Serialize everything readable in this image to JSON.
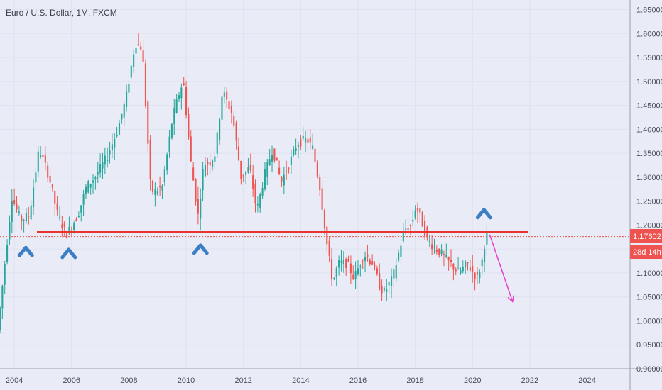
{
  "header": {
    "title": "Euro / U.S. Dollar, 1M, FXCM"
  },
  "price_label": {
    "value": "1.17602",
    "countdown": "28d 14h"
  },
  "chart_data": {
    "type": "candlestick",
    "symbol": "Euro / U.S. Dollar",
    "interval": "1M",
    "source": "FXCM",
    "xlim": [
      2003.5,
      2025.5
    ],
    "ylim": [
      0.9,
      1.67
    ],
    "x_ticks": [
      2004,
      2006,
      2008,
      2010,
      2012,
      2014,
      2016,
      2018,
      2020,
      2022,
      2024
    ],
    "y_ticks": [
      0.9,
      0.95,
      1.0,
      1.05,
      1.1,
      1.15,
      1.2,
      1.25,
      1.3,
      1.35,
      1.4,
      1.45,
      1.5,
      1.55,
      1.6,
      1.65
    ],
    "y_tick_labels": [
      "0.90000",
      "0.95000",
      "1.00000",
      "1.05000",
      "1.10000",
      "1.15000",
      "1.20000",
      "1.25000",
      "1.30000",
      "1.35000",
      "1.40000",
      "1.45000",
      "1.50000",
      "1.55000",
      "1.60000",
      "1.65000"
    ],
    "current_price": 1.17602,
    "colors": {
      "up": "#26a69a",
      "down": "#ef5350",
      "support": "#e8332f",
      "marker": "#3d7fc4",
      "arrow": "#e63fc8"
    },
    "price_path": [
      [
        2003.5,
        0.98
      ],
      [
        2004.0,
        1.26
      ],
      [
        2004.3,
        1.21
      ],
      [
        2004.6,
        1.22
      ],
      [
        2004.95,
        1.36
      ],
      [
        2005.3,
        1.3
      ],
      [
        2005.6,
        1.22
      ],
      [
        2005.9,
        1.18
      ],
      [
        2006.3,
        1.22
      ],
      [
        2006.6,
        1.28
      ],
      [
        2006.9,
        1.3
      ],
      [
        2007.3,
        1.34
      ],
      [
        2007.7,
        1.4
      ],
      [
        2008.0,
        1.47
      ],
      [
        2008.3,
        1.58
      ],
      [
        2008.55,
        1.57
      ],
      [
        2008.85,
        1.27
      ],
      [
        2009.0,
        1.27
      ],
      [
        2009.25,
        1.28
      ],
      [
        2009.6,
        1.42
      ],
      [
        2009.9,
        1.49
      ],
      [
        2010.0,
        1.49
      ],
      [
        2010.25,
        1.33
      ],
      [
        2010.5,
        1.22
      ],
      [
        2010.7,
        1.33
      ],
      [
        2010.9,
        1.33
      ],
      [
        2011.1,
        1.35
      ],
      [
        2011.35,
        1.48
      ],
      [
        2011.7,
        1.43
      ],
      [
        2012.0,
        1.3
      ],
      [
        2012.3,
        1.32
      ],
      [
        2012.55,
        1.23
      ],
      [
        2012.8,
        1.3
      ],
      [
        2013.1,
        1.36
      ],
      [
        2013.4,
        1.29
      ],
      [
        2013.7,
        1.33
      ],
      [
        2013.95,
        1.37
      ],
      [
        2014.3,
        1.38
      ],
      [
        2014.5,
        1.36
      ],
      [
        2014.75,
        1.28
      ],
      [
        2015.0,
        1.16
      ],
      [
        2015.2,
        1.08
      ],
      [
        2015.4,
        1.12
      ],
      [
        2015.7,
        1.12
      ],
      [
        2015.95,
        1.09
      ],
      [
        2016.3,
        1.14
      ],
      [
        2016.6,
        1.12
      ],
      [
        2016.85,
        1.07
      ],
      [
        2017.0,
        1.06
      ],
      [
        2017.3,
        1.09
      ],
      [
        2017.5,
        1.14
      ],
      [
        2017.7,
        1.19
      ],
      [
        2017.95,
        1.2
      ],
      [
        2018.1,
        1.24
      ],
      [
        2018.3,
        1.21
      ],
      [
        2018.5,
        1.17
      ],
      [
        2018.8,
        1.15
      ],
      [
        2019.0,
        1.14
      ],
      [
        2019.3,
        1.12
      ],
      [
        2019.6,
        1.1
      ],
      [
        2019.9,
        1.12
      ],
      [
        2020.1,
        1.1
      ],
      [
        2020.25,
        1.09
      ],
      [
        2020.4,
        1.12
      ],
      [
        2020.55,
        1.18
      ]
    ],
    "support_level": {
      "price": 1.185,
      "x_start": 2003.5,
      "x_end": 2021.95
    },
    "projection_arrow": {
      "from": [
        2020.6,
        1.18
      ],
      "to": [
        2021.4,
        1.04
      ]
    },
    "bounce_markers": [
      {
        "x": 2004.4,
        "y": 1.147
      },
      {
        "x": 2005.9,
        "y": 1.143
      },
      {
        "x": 2010.5,
        "y": 1.152
      },
      {
        "x": 2020.4,
        "y": 1.226
      }
    ]
  }
}
